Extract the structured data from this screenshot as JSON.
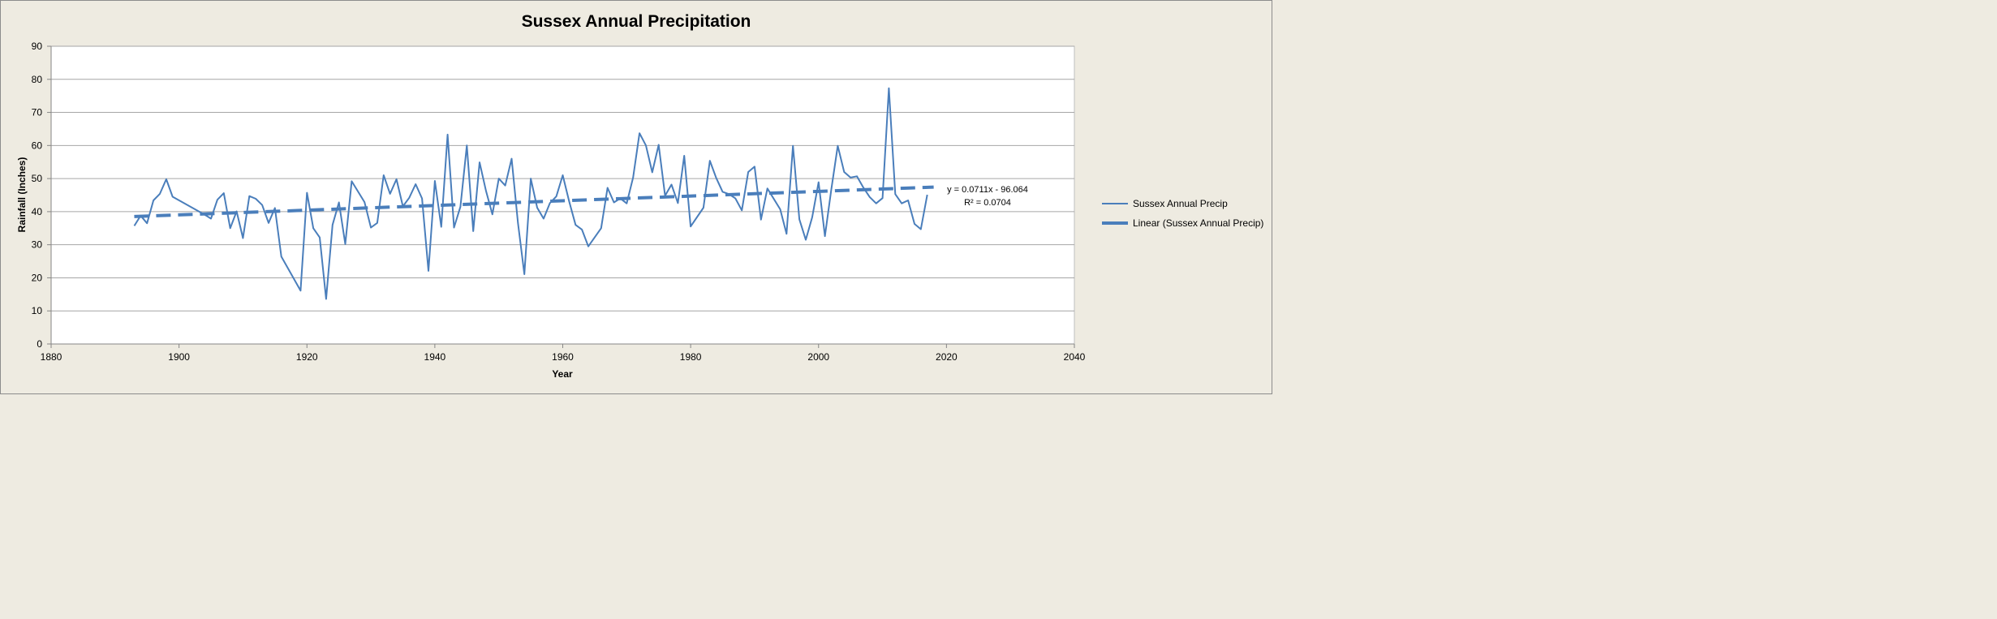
{
  "chart_data": {
    "type": "line",
    "title": "Sussex Annual Precipitation",
    "xlabel": "Year",
    "ylabel": "Rainfall (Inches)",
    "xlim": [
      1880,
      2040
    ],
    "ylim": [
      0,
      90
    ],
    "xticks": [
      1880,
      1900,
      1920,
      1940,
      1960,
      1980,
      2000,
      2020,
      2040
    ],
    "yticks": [
      0,
      10,
      20,
      30,
      40,
      50,
      60,
      70,
      80,
      90
    ],
    "grid": "horizontal",
    "legend_position": "right",
    "colors": {
      "series": "#4a7ebb",
      "plot_background": "#ffffff",
      "chart_background": "#eeebe1",
      "gridline": "#a6a6a6"
    },
    "series": [
      {
        "name": "Sussex Annual Precip",
        "style": "solid",
        "x": [
          1893,
          1894,
          1895,
          1896,
          1897,
          1898,
          1899,
          1904,
          1905,
          1906,
          1907,
          1908,
          1909,
          1910,
          1911,
          1912,
          1913,
          1914,
          1915,
          1916,
          1919,
          1920,
          1921,
          1922,
          1923,
          1924,
          1925,
          1926,
          1927,
          1929,
          1930,
          1931,
          1932,
          1933,
          1934,
          1935,
          1936,
          1937,
          1938,
          1939,
          1940,
          1941,
          1942,
          1943,
          1944,
          1945,
          1946,
          1947,
          1948,
          1949,
          1950,
          1951,
          1952,
          1953,
          1954,
          1955,
          1956,
          1957,
          1958,
          1959,
          1960,
          1961,
          1962,
          1963,
          1964,
          1966,
          1967,
          1968,
          1969,
          1970,
          1971,
          1972,
          1973,
          1974,
          1975,
          1976,
          1977,
          1978,
          1979,
          1980,
          1982,
          1983,
          1984,
          1985,
          1986,
          1987,
          1988,
          1989,
          1990,
          1991,
          1992,
          1994,
          1995,
          1996,
          1997,
          1998,
          1999,
          2000,
          2001,
          2002,
          2003,
          2004,
          2005,
          2006,
          2007,
          2008,
          2009,
          2010,
          2011,
          2012,
          2013,
          2014,
          2015,
          2016,
          2017
        ],
        "values": [
          35.7,
          38.8,
          36.5,
          43.4,
          45.4,
          49.8,
          44.5,
          39.1,
          37.9,
          43.6,
          45.6,
          35.0,
          40.1,
          32.0,
          44.7,
          43.9,
          42.0,
          36.6,
          41.1,
          26.4,
          16.1,
          45.7,
          35.0,
          32.2,
          13.6,
          36.0,
          42.8,
          30.2,
          49.2,
          42.9,
          35.2,
          36.6,
          51.0,
          45.4,
          49.8,
          41.6,
          44.2,
          48.3,
          44.0,
          22.1,
          49.3,
          35.4,
          63.3,
          35.2,
          41.5,
          60.0,
          34.1,
          54.9,
          46.3,
          39.2,
          50.0,
          47.9,
          56.0,
          36.6,
          21.1,
          50.0,
          41.2,
          37.9,
          42.6,
          44.6,
          51.0,
          43.1,
          36.0,
          34.6,
          29.5,
          35.0,
          47.2,
          42.8,
          44.0,
          42.5,
          50.3,
          63.7,
          60.0,
          51.9,
          60.2,
          44.8,
          48.2,
          42.6,
          56.9,
          35.5,
          41.2,
          55.4,
          50.2,
          46.0,
          45.3,
          44.0,
          40.4,
          52.0,
          53.6,
          37.6,
          47.0,
          40.7,
          33.3,
          59.9,
          37.7,
          31.5,
          38.3,
          48.9,
          32.6,
          46.8,
          59.9,
          52.0,
          50.3,
          50.7,
          47.3,
          44.4,
          42.5,
          44.1,
          77.3,
          45.3,
          42.5,
          43.4,
          36.3,
          34.7,
          45.1
        ]
      },
      {
        "name": "Linear (Sussex Annual Precip)",
        "style": "dashed",
        "slope": 0.0711,
        "intercept": -96.064,
        "x_range": [
          1893,
          2018
        ]
      }
    ],
    "annotations": {
      "equation": "y = 0.0711x - 96.064",
      "r_squared": "R² = 0.0704"
    }
  }
}
